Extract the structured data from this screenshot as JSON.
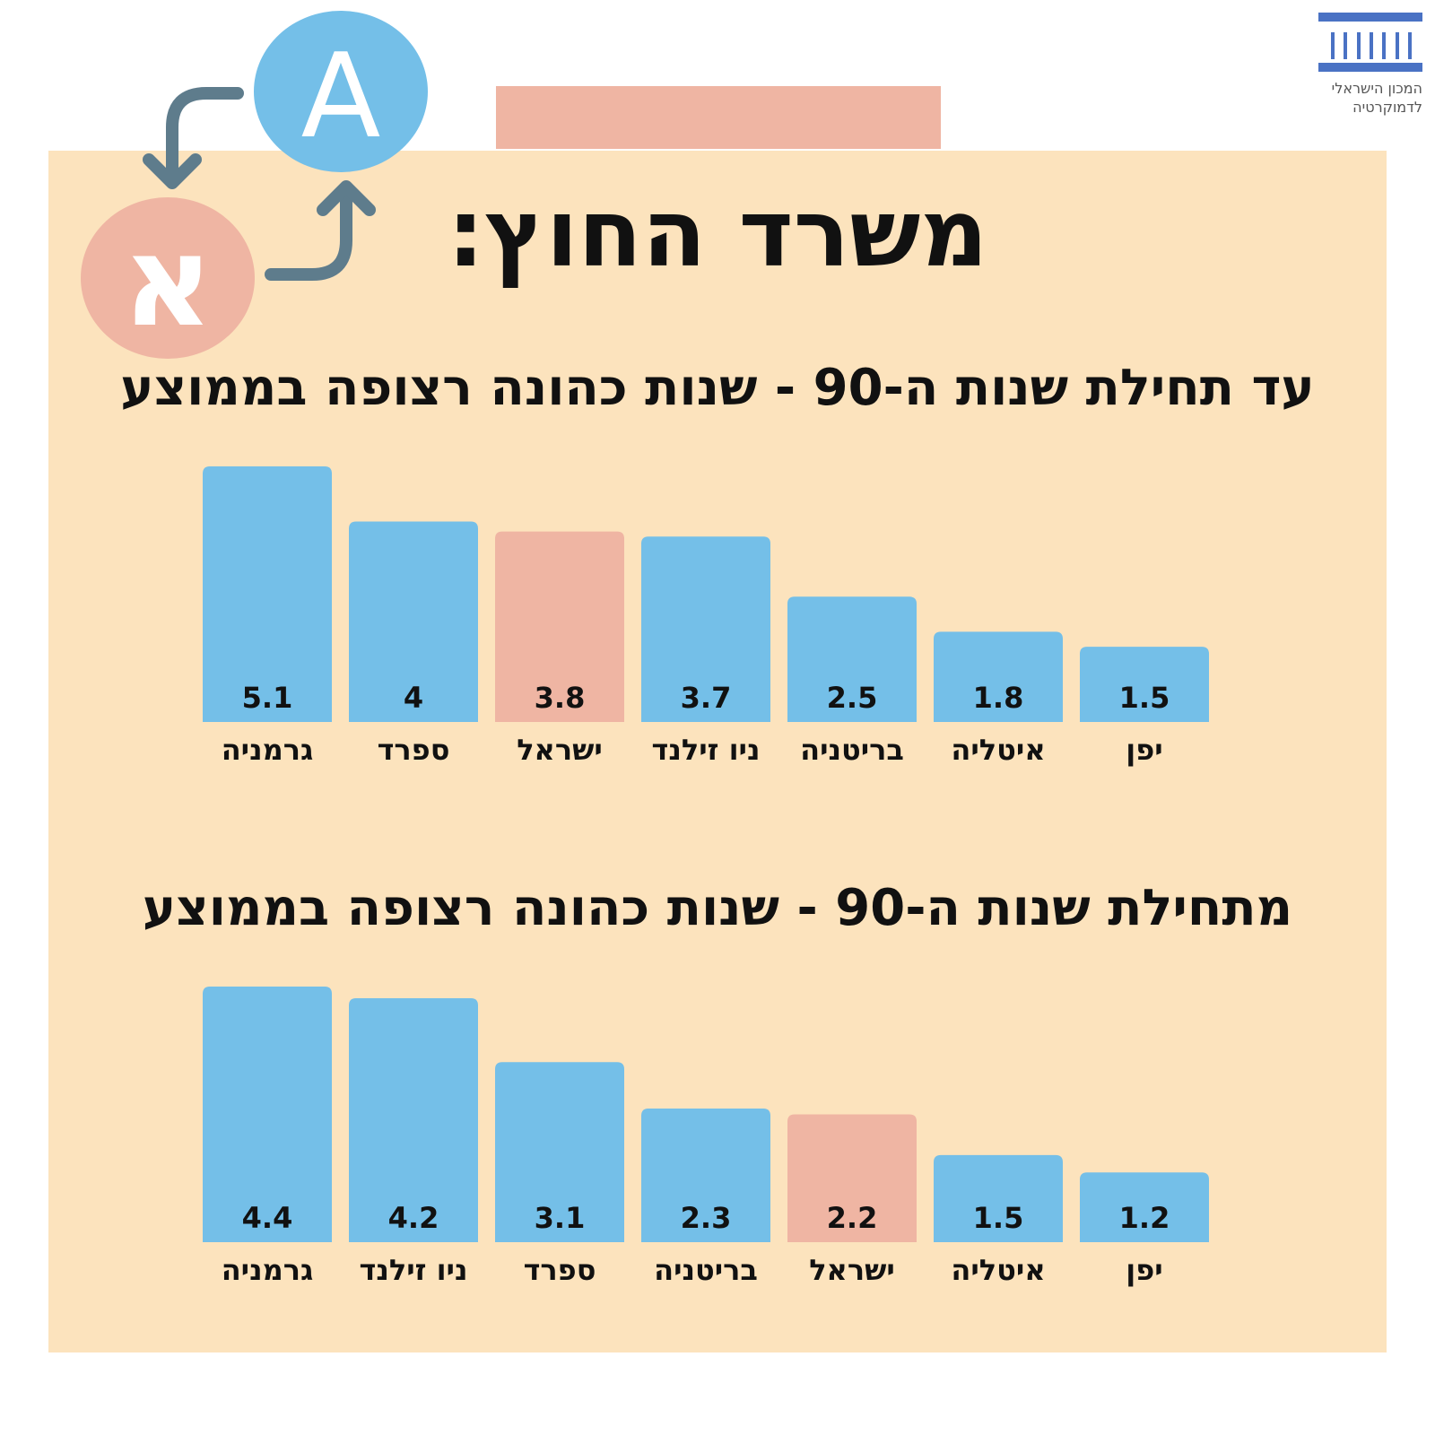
{
  "header": {
    "title": "משרד החוץ:",
    "logo_lines": [
      "המכון הישראלי",
      "לדמוקרטיה"
    ],
    "icon_latin_letter": "A",
    "icon_hebrew_letter": "א"
  },
  "colors": {
    "panel": "#fce3bd",
    "bar": "#74bfe8",
    "highlight": "#efb5a3",
    "arrow": "#5e7c8c",
    "logo": "#4a72c4"
  },
  "icons": [
    "translate-icon",
    "institute-logo-icon"
  ],
  "chart_data": [
    {
      "type": "bar",
      "title": "עד תחילת שנות ה-90 - שנות כהונה רצופה בממוצע",
      "categories": [
        "גרמניה",
        "ספרד",
        "ישראל",
        "ניו זילנד",
        "בריטניה",
        "איטליה",
        "יפן"
      ],
      "values": [
        5.1,
        4,
        3.8,
        3.7,
        2.5,
        1.8,
        1.5
      ],
      "value_labels": [
        "5.1",
        "4",
        "3.8",
        "3.7",
        "2.5",
        "1.8",
        "1.5"
      ],
      "highlight_category": "ישראל",
      "ylim": [
        0,
        5.1
      ],
      "grid": false,
      "legend": "none"
    },
    {
      "type": "bar",
      "title": "מתחילת שנות ה-90 - שנות כהונה רצופה בממוצע",
      "categories": [
        "גרמניה",
        "ניו זילנד",
        "ספרד",
        "בריטניה",
        "ישראל",
        "איטליה",
        "יפן"
      ],
      "values": [
        4.4,
        4.2,
        3.1,
        2.3,
        2.2,
        1.5,
        1.2
      ],
      "value_labels": [
        "4.4",
        "4.2",
        "3.1",
        "2.3",
        "2.2",
        "1.5",
        "1.2"
      ],
      "highlight_category": "ישראל",
      "ylim": [
        0,
        4.4
      ],
      "grid": false,
      "legend": "none"
    }
  ]
}
